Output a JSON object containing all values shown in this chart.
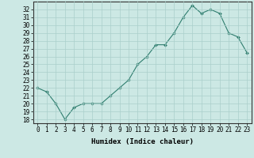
{
  "x": [
    0,
    1,
    2,
    3,
    4,
    5,
    6,
    7,
    8,
    9,
    10,
    11,
    12,
    13,
    14,
    15,
    16,
    17,
    18,
    19,
    20,
    21,
    22,
    23
  ],
  "y": [
    22,
    21.5,
    20,
    18,
    19.5,
    20,
    20,
    20,
    21,
    22,
    23,
    25,
    26,
    27.5,
    27.5,
    29,
    31,
    32.5,
    31.5,
    32,
    31.5,
    29,
    28.5,
    26.5
  ],
  "line_color": "#2e7d6e",
  "marker": "D",
  "marker_size": 2,
  "bg_color": "#cce8e4",
  "grid_color": "#aacfcb",
  "xlabel": "Humidex (Indice chaleur)",
  "xlim": [
    -0.5,
    23.5
  ],
  "ylim": [
    17.5,
    33.0
  ],
  "yticks": [
    18,
    19,
    20,
    21,
    22,
    23,
    24,
    25,
    26,
    27,
    28,
    29,
    30,
    31,
    32
  ],
  "xticks": [
    0,
    1,
    2,
    3,
    4,
    5,
    6,
    7,
    8,
    9,
    10,
    11,
    12,
    13,
    14,
    15,
    16,
    17,
    18,
    19,
    20,
    21,
    22,
    23
  ],
  "tick_fontsize": 5.5,
  "label_fontsize": 6.5
}
